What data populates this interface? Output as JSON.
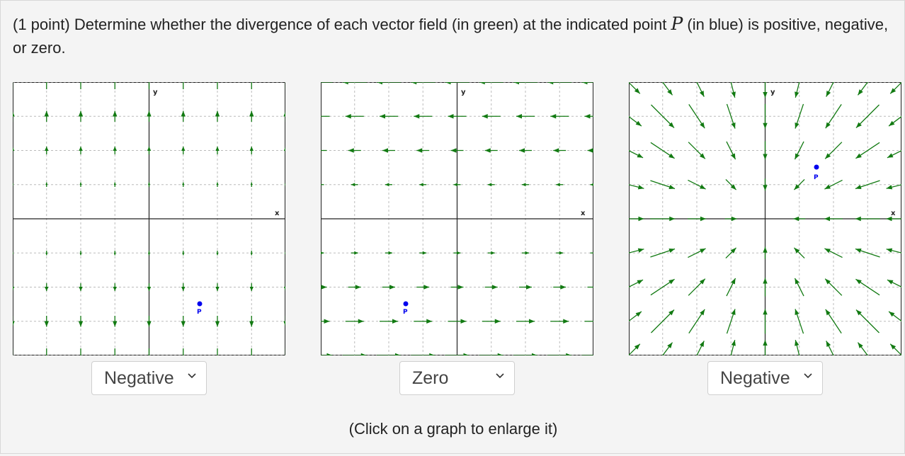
{
  "question": {
    "prefix": "(1 point) Determine whether the divergence of each vector field (in green) at the indicated point",
    "variable": "P",
    "suffix": "(in blue) is positive, negative, or zero."
  },
  "graphs": [
    {
      "x_label": "x",
      "y_label": "y",
      "point_label": "P",
      "answer": "Negative"
    },
    {
      "x_label": "x",
      "y_label": "y",
      "point_label": "P",
      "answer": "Zero"
    },
    {
      "x_label": "x",
      "y_label": "y",
      "point_label": "P",
      "answer": "Negative"
    }
  ],
  "footer": "(Click on a graph to enlarge it)",
  "colors": {
    "arrow": "#127a12",
    "point": "#0000ee",
    "grid": "#bbbbbb",
    "axis": "#222222"
  }
}
